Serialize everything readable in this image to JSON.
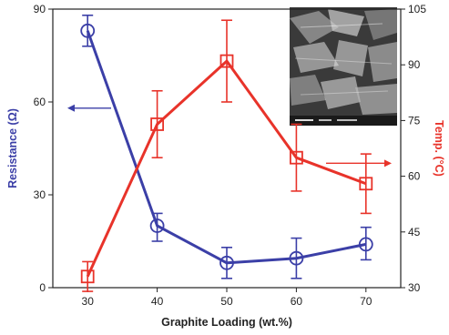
{
  "chart_data": {
    "type": "line",
    "title": "",
    "xlabel": "Graphite Loading (wt.%)",
    "ylabel_left": "Resistance (Ω)",
    "ylabel_right": "Temp. (°C)",
    "x": [
      30,
      40,
      50,
      60,
      70
    ],
    "xlim": [
      25,
      75
    ],
    "x_ticks": [
      "30",
      "40",
      "50",
      "60",
      "70"
    ],
    "ylim_left": [
      0,
      90
    ],
    "y_ticks_left": [
      "0",
      "30",
      "60",
      "90"
    ],
    "ylim_right": [
      30,
      105
    ],
    "y_ticks_right": [
      "30",
      "45",
      "60",
      "75",
      "90",
      "105"
    ],
    "grid": false,
    "legend": "none",
    "series": [
      {
        "axis": "left",
        "color": "#3b3fa7",
        "marker": "circle",
        "values": [
          83,
          20,
          8,
          9.5,
          14
        ],
        "err_low": [
          5,
          5,
          5,
          6.5,
          5
        ],
        "err_high": [
          5,
          4,
          5,
          6.5,
          5.5
        ]
      },
      {
        "axis": "right",
        "color": "#e8332a",
        "marker": "square",
        "values": [
          33,
          74,
          91,
          65,
          58
        ],
        "err_low": [
          4,
          9,
          11,
          9,
          8
        ],
        "err_high": [
          4,
          9,
          11,
          9,
          8
        ]
      }
    ],
    "arrows": [
      {
        "points_to": "left-axis",
        "color": "#3b3fa7"
      },
      {
        "points_to": "right-axis",
        "color": "#e8332a"
      }
    ],
    "inset": {
      "kind": "SEM micrograph",
      "position": "top-right"
    }
  }
}
